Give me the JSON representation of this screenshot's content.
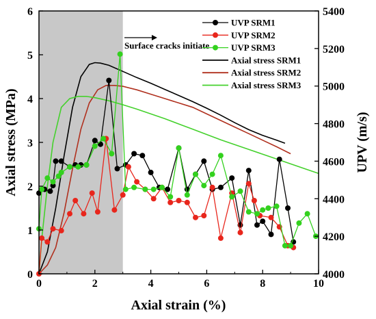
{
  "chart_data": {
    "type": "line",
    "xlabel": "Axial strain (%)",
    "ylabel": "Axial stress (MPa)",
    "y2label": "UPV (m/s)",
    "xlim": [
      0,
      10
    ],
    "ylim": [
      0,
      6
    ],
    "y2lim": [
      4000,
      5400
    ],
    "xticks": [
      0,
      2,
      4,
      6,
      8,
      10
    ],
    "yticks": [
      0,
      1,
      2,
      3,
      4,
      5,
      6
    ],
    "y2ticks": [
      4000,
      4200,
      4400,
      4600,
      4800,
      5000,
      5200,
      5400
    ],
    "grid": false,
    "legend_position": "top-right",
    "shaded_region": {
      "x_start": 0,
      "x_end": 3,
      "color": "#c8c8c8"
    },
    "annotation": {
      "text": "Surface cracks initiate",
      "x": 3,
      "y": 5.4
    },
    "upv_series": [
      {
        "name": "UVP SRM1",
        "color": "#000000",
        "axis": "right",
        "x": [
          0,
          0.2,
          0.4,
          0.5,
          0.6,
          0.8,
          1.1,
          1.3,
          1.5,
          1.7,
          2.0,
          2.2,
          2.5,
          2.8,
          3.1,
          3.4,
          3.7,
          4.0,
          4.3,
          4.6,
          5.0,
          5.3,
          5.6,
          5.9,
          6.2,
          6.5,
          6.9,
          7.2,
          7.5,
          7.8,
          8.0,
          8.3,
          8.6,
          8.9,
          9.1
        ],
        "y": [
          4430,
          4450,
          4440,
          4470,
          4600,
          4600,
          4570,
          4580,
          4580,
          4580,
          4710,
          4690,
          5030,
          4560,
          4580,
          4640,
          4630,
          4540,
          4460,
          4450,
          4670,
          4450,
          4530,
          4600,
          4450,
          4460,
          4510,
          4260,
          4550,
          4260,
          4280,
          4210,
          4610,
          4350,
          4170
        ]
      },
      {
        "name": "UVP SRM2",
        "color": "#e8261c",
        "axis": "right",
        "x": [
          0,
          0.1,
          0.3,
          0.5,
          0.8,
          1.1,
          1.3,
          1.6,
          1.9,
          2.1,
          2.4,
          2.7,
          3.0,
          3.2,
          3.5,
          3.8,
          4.1,
          4.4,
          4.7,
          5.0,
          5.3,
          5.6,
          5.9,
          6.2,
          6.5,
          6.9,
          7.2,
          7.5,
          7.7,
          7.9,
          8.3,
          8.6,
          8.9,
          9.1
        ],
        "y": [
          4000,
          4190,
          4170,
          4240,
          4230,
          4320,
          4390,
          4320,
          4430,
          4330,
          4720,
          4340,
          4420,
          4570,
          4490,
          4450,
          4400,
          4460,
          4380,
          4390,
          4380,
          4300,
          4310,
          4460,
          4190,
          4430,
          4220,
          4480,
          4390,
          4310,
          4300,
          4250,
          4150,
          4140
        ]
      },
      {
        "name": "UVP SRM3",
        "color": "#33d11e",
        "axis": "right",
        "x": [
          0,
          0.1,
          0.3,
          0.5,
          0.7,
          0.8,
          1.1,
          1.4,
          1.7,
          2.0,
          2.3,
          2.6,
          2.9,
          3.1,
          3.4,
          3.8,
          4.1,
          4.4,
          4.7,
          5.0,
          5.3,
          5.6,
          5.9,
          6.2,
          6.5,
          6.9,
          7.2,
          7.5,
          7.8,
          8.0,
          8.2,
          8.5,
          8.8,
          9.0,
          9.3,
          9.6,
          9.9
        ],
        "y": [
          4240,
          4450,
          4510,
          4490,
          4520,
          4540,
          4570,
          4570,
          4580,
          4680,
          4720,
          4640,
          5170,
          4450,
          4460,
          4450,
          4450,
          4460,
          4410,
          4670,
          4420,
          4530,
          4470,
          4530,
          4630,
          4410,
          4440,
          4330,
          4320,
          4340,
          4350,
          4360,
          4150,
          4150,
          4270,
          4320,
          4200
        ]
      }
    ],
    "stress_series": [
      {
        "name": "Axial stress SRM1",
        "color": "#000000",
        "axis": "left",
        "x": [
          0,
          0.3,
          0.6,
          0.9,
          1.2,
          1.5,
          1.8,
          2.0,
          2.2,
          2.5,
          3.0,
          3.5,
          4.0,
          4.5,
          5.0,
          5.5,
          6.0,
          6.5,
          7.0,
          7.5,
          8.0,
          8.5,
          8.8
        ],
        "y": [
          0,
          0.5,
          1.5,
          2.7,
          3.8,
          4.5,
          4.78,
          4.82,
          4.81,
          4.76,
          4.62,
          4.48,
          4.35,
          4.21,
          4.07,
          3.93,
          3.78,
          3.62,
          3.45,
          3.29,
          3.16,
          3.05,
          2.98
        ]
      },
      {
        "name": "Axial stress SRM2",
        "color": "#b0301e",
        "axis": "left",
        "x": [
          0,
          0.3,
          0.6,
          0.9,
          1.2,
          1.5,
          1.8,
          2.1,
          2.4,
          2.7,
          3.0,
          3.5,
          4.0,
          4.5,
          5.0,
          5.5,
          6.0,
          6.5,
          7.0,
          7.5,
          8.0,
          8.5,
          9.0
        ],
        "y": [
          0,
          0.2,
          0.6,
          1.4,
          2.4,
          3.3,
          3.9,
          4.2,
          4.3,
          4.3,
          4.28,
          4.2,
          4.1,
          4.0,
          3.9,
          3.8,
          3.65,
          3.5,
          3.35,
          3.2,
          3.05,
          2.9,
          2.74
        ]
      },
      {
        "name": "Axial stress SRM3",
        "color": "#44d12c",
        "axis": "left",
        "x": [
          0,
          0.1,
          0.3,
          0.5,
          0.8,
          1.1,
          1.4,
          1.7,
          2.0,
          2.5,
          3.0,
          3.5,
          4.0,
          4.5,
          5.0,
          5.5,
          6.0,
          6.5,
          7.0,
          7.5,
          8.0,
          8.5,
          9.0,
          9.5,
          10.0
        ],
        "y": [
          0,
          0.8,
          2.0,
          3.0,
          3.8,
          4.0,
          4.05,
          4.05,
          4.02,
          3.95,
          3.86,
          3.76,
          3.65,
          3.54,
          3.42,
          3.3,
          3.18,
          3.06,
          2.95,
          2.84,
          2.73,
          2.62,
          2.51,
          2.4,
          2.29
        ]
      }
    ]
  }
}
